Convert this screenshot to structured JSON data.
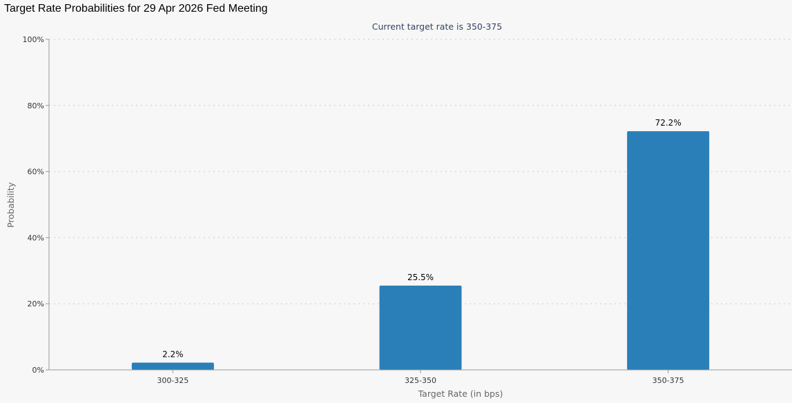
{
  "page": {
    "title": "Target Rate Probabilities for 29 Apr 2026 Fed Meeting"
  },
  "colors": {
    "background": "#f7f7f7",
    "bar": "#2a7fb8",
    "grid": "#d8d8d8",
    "axis": "#999999",
    "subtitle": "#334466",
    "tick_text": "#333333",
    "axis_title": "#666666",
    "label_text": "#000000"
  },
  "chart_data": {
    "type": "bar",
    "subtitle": "Current target rate is 350-375",
    "xlabel": "Target Rate (in bps)",
    "ylabel": "Probability",
    "categories": [
      "300-325",
      "325-350",
      "350-375"
    ],
    "values": [
      2.2,
      25.5,
      72.2
    ],
    "data_labels": [
      "2.2%",
      "25.5%",
      "72.2%"
    ],
    "ylim": [
      0,
      100
    ],
    "yticks": [
      0,
      20,
      40,
      60,
      80,
      100
    ],
    "ytick_labels": [
      "0%",
      "20%",
      "40%",
      "60%",
      "80%",
      "100%"
    ],
    "grid": true,
    "legend": false
  }
}
